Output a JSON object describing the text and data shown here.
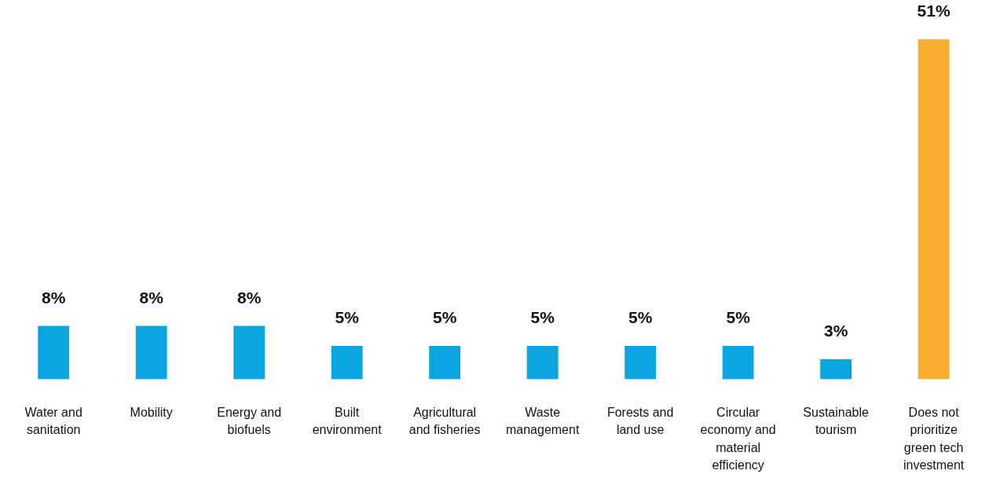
{
  "chart_data": {
    "type": "bar",
    "categories": [
      "Water and sanitation",
      "Mobility",
      "Energy and biofuels",
      "Built environment",
      "Agricultural and fisheries",
      "Waste management",
      "Forests and land use",
      "Circular economy and material efficiency",
      "Sustainable tourism",
      "Does not prioritize green tech investment"
    ],
    "values": [
      8,
      8,
      8,
      5,
      5,
      5,
      5,
      5,
      3,
      51
    ],
    "colors": [
      "#0ba5df",
      "#0ba5df",
      "#0ba5df",
      "#0ba5df",
      "#0ba5df",
      "#0ba5df",
      "#0ba5df",
      "#0ba5df",
      "#0ba5df",
      "#f7ae31"
    ],
    "value_labels": [
      "8%",
      "8%",
      "8%",
      "5%",
      "5%",
      "5%",
      "5%",
      "5%",
      "3%",
      "51%"
    ],
    "grid": false,
    "legend": false,
    "tick_labels": "x"
  }
}
